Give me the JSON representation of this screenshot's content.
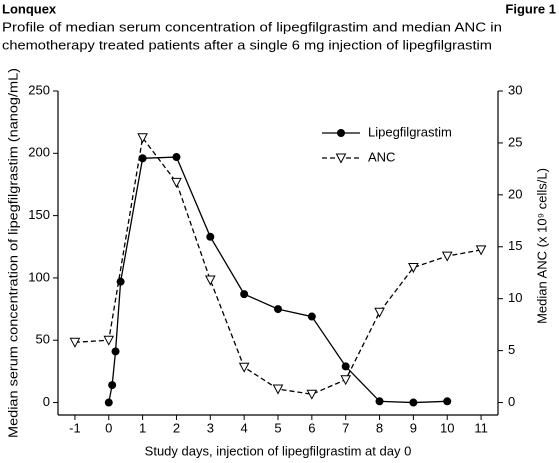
{
  "header": "Lonquex",
  "figure_label": "Figure 1",
  "chart_data": {
    "type": "line",
    "title": [
      "Profile of median serum concentration of lipegfilgrastim and median ANC in",
      "chemotherapy treated patients after a single 6 mg injection of lipegfilgrastim"
    ],
    "xlabel": "Study days, injection of lipegfilgrastim at day 0",
    "ylabel": "Median serum concentration of lipegfilgrastim (nanog/mL)",
    "y2label": "Median ANC (x 10⁹ cells/L)",
    "xlim": [
      -1.5,
      11.5
    ],
    "xticks": [
      -1,
      0,
      1,
      2,
      3,
      4,
      5,
      6,
      7,
      8,
      9,
      10,
      11
    ],
    "ylim": [
      -10,
      250
    ],
    "yticks": [
      0,
      50,
      100,
      150,
      200,
      250
    ],
    "y2lim": [
      -1.2,
      30
    ],
    "y2ticks": [
      0,
      5,
      10,
      15,
      20,
      25,
      30
    ],
    "legend": "upper right",
    "series": [
      {
        "name": "Lipegfilgrastim",
        "color": "#000000",
        "dash": "solid",
        "marker": "circle",
        "axis": "y",
        "x": [
          0,
          0.1,
          0.2,
          0.35,
          1,
          2,
          3,
          4,
          5,
          6,
          7,
          8,
          9,
          10
        ],
        "values": [
          0,
          14,
          41,
          97,
          196,
          197,
          133,
          87,
          75,
          69,
          29,
          1,
          0,
          1
        ]
      },
      {
        "name": "ANC",
        "color": "#000000",
        "dash": "dashed",
        "marker": "triangle-down",
        "axis": "y2",
        "x": [
          -1,
          0,
          1,
          2,
          3,
          4,
          5,
          6,
          7,
          8,
          9,
          10,
          11
        ],
        "values": [
          5.8,
          6.0,
          25.5,
          21.2,
          11.8,
          3.4,
          1.3,
          0.8,
          2.2,
          8.7,
          13.0,
          14.1,
          14.7
        ]
      }
    ]
  }
}
